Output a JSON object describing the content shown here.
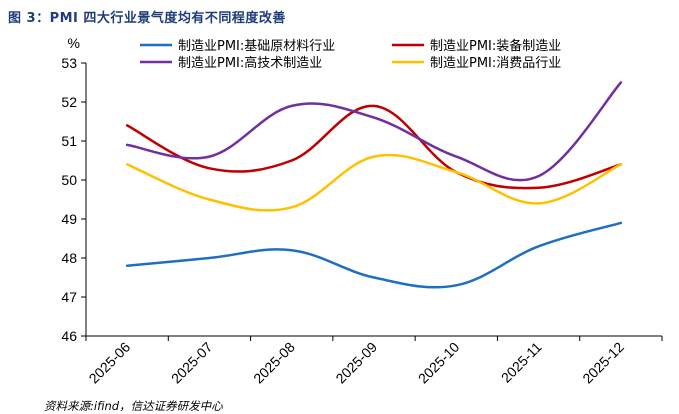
{
  "figure": {
    "title": "图 3：PMI 四大行业景气度均有不同程度改善",
    "source": "资料来源:ifind，信达证券研发中心"
  },
  "chart_data": {
    "type": "line",
    "title": "PMI 四大行业景气度均有不同程度改善",
    "xlabel": "",
    "ylabel": "%",
    "categories": [
      "2025-06",
      "2025-07",
      "2025-08",
      "2025-09",
      "2025-10",
      "2025-11",
      "2025-12"
    ],
    "ylim": [
      46,
      53
    ],
    "yticks": [
      46,
      47,
      48,
      49,
      50,
      51,
      52,
      53
    ],
    "legend_position": "top",
    "series": [
      {
        "name": "制造业PMI:基础原材料行业",
        "color": "#1f6fc0",
        "values": [
          47.8,
          48.0,
          48.2,
          47.5,
          47.3,
          48.3,
          48.9
        ]
      },
      {
        "name": "制造业PMI:装备制造业",
        "color": "#c00000",
        "values": [
          51.4,
          50.3,
          50.5,
          51.9,
          50.2,
          49.8,
          50.4
        ]
      },
      {
        "name": "制造业PMI:高技术制造业",
        "color": "#7030a0",
        "values": [
          50.9,
          50.6,
          51.9,
          51.6,
          50.6,
          50.1,
          52.5
        ]
      },
      {
        "name": "制造业PMI:消费品行业",
        "color": "#ffc000",
        "values": [
          50.4,
          49.5,
          49.3,
          50.6,
          50.2,
          49.4,
          50.4
        ]
      }
    ]
  }
}
